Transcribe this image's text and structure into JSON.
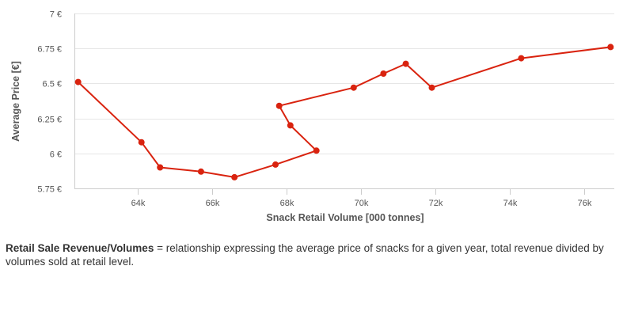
{
  "chart_data": {
    "type": "line",
    "xlabel": "Snack Retail Volume [000 tonnes]",
    "ylabel": "Average Price [€]",
    "xlim": [
      62300,
      76800
    ],
    "ylim": [
      5.75,
      7
    ],
    "x_ticks": [
      64000,
      66000,
      68000,
      70000,
      72000,
      74000,
      76000
    ],
    "x_tick_labels": [
      "64k",
      "66k",
      "68k",
      "70k",
      "72k",
      "74k",
      "76k"
    ],
    "y_ticks": [
      5.75,
      6,
      6.25,
      6.5,
      6.75,
      7
    ],
    "y_tick_labels": [
      "5.75 €",
      "6 €",
      "6.25 €",
      "6.5 €",
      "6.75 €",
      "7 €"
    ],
    "grid": "horizontal",
    "line_color": "#d9230f",
    "series": [
      {
        "points": [
          {
            "x": 62400,
            "y": 6.51
          },
          {
            "x": 64100,
            "y": 6.08
          },
          {
            "x": 64600,
            "y": 5.9
          },
          {
            "x": 65700,
            "y": 5.87
          },
          {
            "x": 66600,
            "y": 5.83
          },
          {
            "x": 67700,
            "y": 5.92
          },
          {
            "x": 68800,
            "y": 6.02
          },
          {
            "x": 68100,
            "y": 6.2
          },
          {
            "x": 67800,
            "y": 6.34
          },
          {
            "x": 69800,
            "y": 6.47
          },
          {
            "x": 70600,
            "y": 6.57
          },
          {
            "x": 71200,
            "y": 6.64
          },
          {
            "x": 71900,
            "y": 6.47
          },
          {
            "x": 74300,
            "y": 6.68
          },
          {
            "x": 76700,
            "y": 6.76
          }
        ]
      }
    ]
  },
  "note": {
    "term": "Retail Sale Revenue/Volumes",
    "definition": " = relationship expressing the average price of snacks for a given year, total revenue divided by volumes sold at retail level."
  }
}
